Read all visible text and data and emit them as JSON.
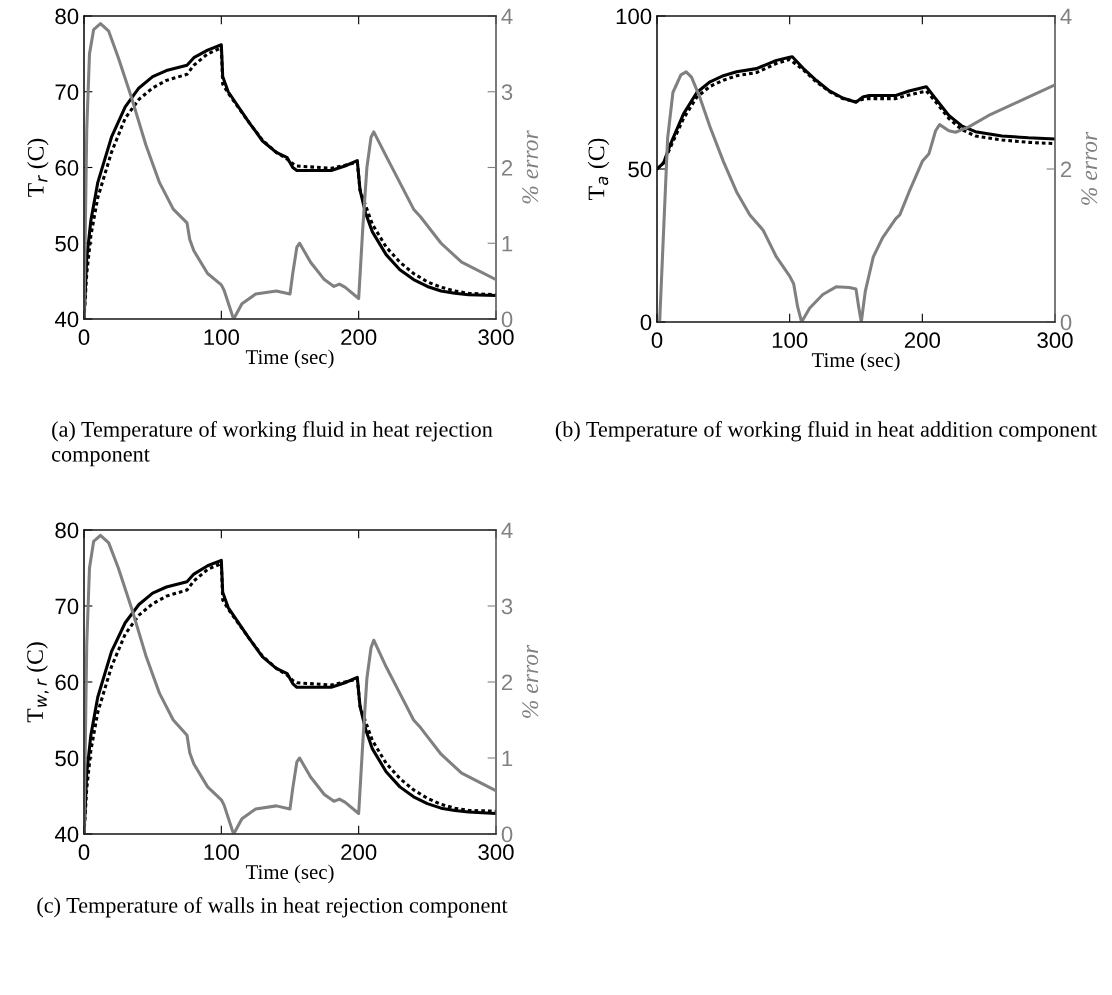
{
  "chart_data": [
    {
      "type": "line",
      "xlabel": "Time (sec)",
      "ylabel": "T$_{r}$ (C)",
      "y2label": "% error",
      "xlim": [
        0,
        300
      ],
      "xticks": [
        0,
        100,
        200,
        300
      ],
      "ylim": [
        40,
        80
      ],
      "yticks": [
        40,
        50,
        60,
        70,
        80
      ],
      "y2lim": [
        0,
        4
      ],
      "y2ticks": [
        0,
        1,
        2,
        3,
        4
      ],
      "grid": false,
      "legend": false,
      "annotations": [
        "(a) Temperature of working fluid in heat rejection component"
      ],
      "series": [
        {
          "color": "#000000",
          "line_style": "solid",
          "x": [
            0,
            2,
            5,
            10,
            20,
            30,
            40,
            50,
            60,
            75,
            80,
            90,
            100,
            101,
            105,
            120,
            130,
            140,
            148,
            152,
            155,
            180,
            190,
            199,
            201,
            205,
            210,
            220,
            230,
            240,
            250,
            260,
            270,
            280,
            300
          ],
          "values": [
            40,
            48,
            53,
            58,
            64,
            68,
            70.5,
            72,
            72.8,
            73.5,
            74.5,
            75.5,
            76.2,
            72,
            70,
            66,
            63.5,
            62,
            61.3,
            60,
            59.6,
            59.6,
            60.2,
            60.9,
            57,
            54,
            51.5,
            48.5,
            46.5,
            45.2,
            44.3,
            43.7,
            43.4,
            43.2,
            43.1
          ]
        },
        {
          "color": "#000000",
          "line_style": "dotted",
          "x": [
            0,
            2,
            5,
            10,
            20,
            30,
            40,
            50,
            60,
            75,
            80,
            90,
            100,
            101,
            105,
            120,
            130,
            140,
            148,
            152,
            155,
            180,
            190,
            199,
            201,
            205,
            210,
            220,
            230,
            240,
            250,
            260,
            270,
            280,
            300
          ],
          "values": [
            40,
            46,
            51,
            56,
            62,
            66.5,
            69,
            70.5,
            71.5,
            72.3,
            73.5,
            75,
            75.8,
            71,
            69.8,
            66,
            63.6,
            62,
            61.1,
            60.5,
            60.2,
            59.9,
            60.3,
            60.7,
            57,
            55,
            52.5,
            49.5,
            47.5,
            46,
            44.9,
            44.2,
            43.7,
            43.4,
            43.2
          ]
        },
        {
          "color": "#808080",
          "line_style": "solid",
          "axis": "y2",
          "x": [
            0,
            2,
            4,
            7,
            12,
            18,
            25,
            35,
            45,
            55,
            65,
            75,
            77,
            80,
            90,
            100,
            102,
            108,
            109,
            115,
            125,
            140,
            150,
            152,
            155,
            157,
            165,
            175,
            182,
            186,
            190,
            200,
            203,
            206,
            209,
            211,
            220,
            230,
            240,
            245,
            260,
            275,
            300
          ],
          "values": [
            0,
            2.5,
            3.5,
            3.82,
            3.9,
            3.8,
            3.45,
            2.9,
            2.3,
            1.8,
            1.45,
            1.27,
            1.05,
            0.9,
            0.6,
            0.45,
            0.38,
            0.05,
            0,
            0.2,
            0.33,
            0.37,
            0.33,
            0.6,
            0.95,
            1.0,
            0.75,
            0.52,
            0.43,
            0.46,
            0.42,
            0.27,
            1.2,
            2.0,
            2.4,
            2.47,
            2.15,
            1.8,
            1.45,
            1.35,
            1.0,
            0.75,
            0.52
          ]
        }
      ]
    },
    {
      "type": "line",
      "xlabel": "Time (sec)",
      "ylabel": "T$_{a}$ (C)",
      "y2label": "% error",
      "xlim": [
        0,
        300
      ],
      "xticks": [
        0,
        100,
        200,
        300
      ],
      "ylim": [
        0,
        100
      ],
      "yticks": [
        0,
        50,
        100
      ],
      "y2lim": [
        0,
        4
      ],
      "y2ticks": [
        0,
        2,
        4
      ],
      "grid": false,
      "legend": false,
      "annotations": [
        "(b) Temperature of working fluid in heat addition component"
      ],
      "series": [
        {
          "color": "#000000",
          "line_style": "solid",
          "x": [
            0,
            5,
            10,
            20,
            30,
            40,
            50,
            60,
            75,
            90,
            100,
            102,
            110,
            120,
            130,
            140,
            150,
            155,
            160,
            180,
            190,
            203,
            210,
            220,
            230,
            240,
            260,
            280,
            300
          ],
          "values": [
            50,
            52,
            58,
            68,
            75,
            78.5,
            80.5,
            81.8,
            82.8,
            85.5,
            86.5,
            86.7,
            83,
            79,
            75.5,
            73.2,
            71.8,
            73.5,
            74,
            74,
            75.5,
            76.9,
            73,
            67.5,
            64,
            62.2,
            60.8,
            60.2,
            59.8
          ]
        },
        {
          "color": "#000000",
          "line_style": "dotted",
          "x": [
            0,
            5,
            10,
            20,
            30,
            40,
            50,
            60,
            75,
            90,
            100,
            110,
            120,
            130,
            140,
            150,
            155,
            160,
            180,
            190,
            203,
            210,
            220,
            230,
            240,
            260,
            280,
            300
          ],
          "values": [
            50,
            52,
            57,
            66.5,
            73.5,
            77,
            79,
            80.5,
            81.5,
            84.5,
            85.8,
            82.5,
            78.5,
            75.3,
            73,
            72,
            72.8,
            73,
            73,
            74.2,
            75.5,
            72,
            66.5,
            62.8,
            60.8,
            59.5,
            58.7,
            58.3
          ]
        },
        {
          "color": "#808080",
          "line_style": "solid",
          "axis": "y2",
          "x": [
            0,
            2,
            5,
            8,
            12,
            18,
            22,
            26,
            32,
            40,
            50,
            60,
            70,
            80,
            90,
            100,
            103,
            106,
            109,
            115,
            125,
            135,
            145,
            150,
            152,
            154,
            157,
            163,
            170,
            180,
            183,
            190,
            200,
            205,
            210,
            213,
            220,
            225,
            235,
            250,
            275,
            300
          ],
          "values": [
            0,
            0,
            1.2,
            2.4,
            3.0,
            3.23,
            3.27,
            3.2,
            2.95,
            2.55,
            2.1,
            1.7,
            1.4,
            1.2,
            0.85,
            0.6,
            0.5,
            0.2,
            0,
            0.18,
            0.36,
            0.46,
            0.45,
            0.43,
            0.2,
            0,
            0.4,
            0.85,
            1.1,
            1.35,
            1.4,
            1.7,
            2.1,
            2.2,
            2.5,
            2.58,
            2.5,
            2.48,
            2.55,
            2.7,
            2.9,
            3.1
          ]
        }
      ]
    },
    {
      "type": "line",
      "xlabel": "Time (sec)",
      "ylabel": "T$_{w,r}$ (C)",
      "y2label": "% error",
      "xlim": [
        0,
        300
      ],
      "xticks": [
        0,
        100,
        200,
        300
      ],
      "ylim": [
        40,
        80
      ],
      "yticks": [
        40,
        50,
        60,
        70,
        80
      ],
      "y2lim": [
        0,
        4
      ],
      "y2ticks": [
        0,
        1,
        2,
        3,
        4
      ],
      "grid": false,
      "legend": false,
      "annotations": [
        "(c) Temperature of walls in heat rejection component"
      ],
      "series": [
        {
          "color": "#000000",
          "line_style": "solid",
          "x": [
            0,
            2,
            5,
            10,
            20,
            30,
            40,
            50,
            60,
            75,
            80,
            90,
            100,
            101,
            105,
            120,
            130,
            140,
            148,
            152,
            155,
            180,
            190,
            199,
            201,
            205,
            210,
            220,
            230,
            240,
            250,
            260,
            270,
            280,
            300
          ],
          "values": [
            40,
            48,
            53,
            58,
            64,
            67.8,
            70.2,
            71.7,
            72.5,
            73.2,
            74.2,
            75.3,
            76,
            71.8,
            69.8,
            65.8,
            63.3,
            61.8,
            61.1,
            59.8,
            59.3,
            59.3,
            59.9,
            60.6,
            56.8,
            53.8,
            51.2,
            48.2,
            46.2,
            44.9,
            44,
            43.4,
            43.1,
            42.9,
            42.7
          ]
        },
        {
          "color": "#000000",
          "line_style": "dotted",
          "x": [
            0,
            2,
            5,
            10,
            20,
            30,
            40,
            50,
            60,
            75,
            80,
            90,
            100,
            101,
            105,
            120,
            130,
            140,
            148,
            152,
            155,
            180,
            190,
            199,
            201,
            205,
            210,
            220,
            230,
            240,
            250,
            260,
            270,
            280,
            300
          ],
          "values": [
            40,
            46,
            51,
            56,
            62,
            66.3,
            68.8,
            70.3,
            71.3,
            72.1,
            73.3,
            74.8,
            75.6,
            70.8,
            69.6,
            65.8,
            63.4,
            61.8,
            60.9,
            60.2,
            59.9,
            59.6,
            60,
            60.4,
            56.8,
            54.8,
            52.3,
            49.3,
            47.3,
            45.8,
            44.7,
            43.9,
            43.4,
            43.1,
            43
          ]
        },
        {
          "color": "#808080",
          "line_style": "solid",
          "axis": "y2",
          "x": [
            0,
            2,
            4,
            7,
            12,
            18,
            25,
            35,
            45,
            55,
            65,
            75,
            77,
            80,
            90,
            100,
            102,
            108,
            109,
            115,
            125,
            140,
            150,
            152,
            155,
            157,
            165,
            175,
            182,
            186,
            190,
            200,
            203,
            206,
            209,
            211,
            220,
            230,
            240,
            245,
            260,
            275,
            300
          ],
          "values": [
            0,
            2.5,
            3.5,
            3.85,
            3.93,
            3.83,
            3.5,
            2.95,
            2.35,
            1.85,
            1.5,
            1.3,
            1.07,
            0.92,
            0.62,
            0.45,
            0.38,
            0.05,
            0,
            0.2,
            0.33,
            0.37,
            0.33,
            0.6,
            0.95,
            1.0,
            0.75,
            0.52,
            0.43,
            0.46,
            0.42,
            0.27,
            1.2,
            2.05,
            2.45,
            2.55,
            2.2,
            1.85,
            1.5,
            1.4,
            1.05,
            0.8,
            0.57
          ]
        }
      ]
    }
  ]
}
